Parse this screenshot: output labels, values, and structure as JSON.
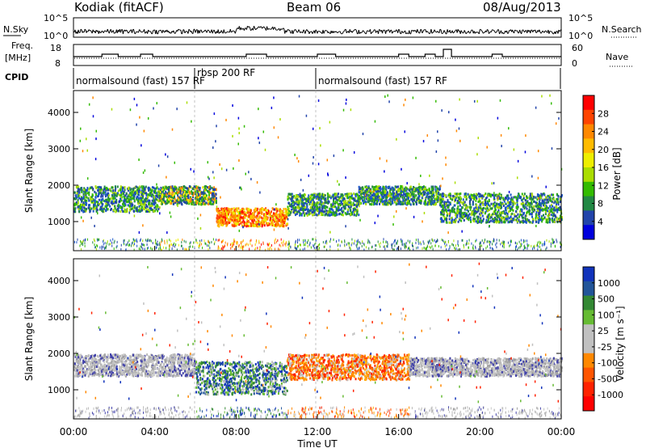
{
  "header": {
    "station": "Kodiak (fitACF)",
    "beam": "Beam 06",
    "date": "08/Aug/2013"
  },
  "nsky_panel": {
    "left_label": "N.Sky",
    "left_ticks": [
      "10^5",
      "10^0"
    ],
    "right_ticks": [
      "10^5",
      "10^0"
    ],
    "right_label": "N.Search"
  },
  "freq_panel": {
    "left_label_line1": "Freq.",
    "left_label_line2": "[MHz]",
    "left_ticks": [
      "18",
      "8"
    ],
    "right_ticks": [
      "60",
      "0"
    ],
    "right_label": "Nave"
  },
  "cpid_panel": {
    "label": "CPID",
    "segments": [
      {
        "text": "normalsound (fast) 157 RF"
      },
      {
        "text": "rbsp 200 RF"
      },
      {
        "text": "normalsound (fast) 157 RF"
      }
    ]
  },
  "colorbars": {
    "power": {
      "label": "Power [dB]",
      "ticks": [
        "28",
        "24",
        "20",
        "16",
        "12",
        "8",
        "4"
      ],
      "colors": [
        "#ff0000",
        "#ff4400",
        "#ff8800",
        "#ffbb00",
        "#eeee00",
        "#aadd00",
        "#33bb00",
        "#228844",
        "#2244aa",
        "#0000dd"
      ]
    },
    "velocity": {
      "label": "Velocity [m s⁻¹]",
      "ticks": [
        "1000",
        "500",
        "100",
        "25",
        "-25",
        "-100",
        "-500",
        "-1000"
      ],
      "colors": [
        "#1133bb",
        "#225599",
        "#338833",
        "#66bb33",
        "#c0c0c0",
        "#c0c0c0",
        "#ff8800",
        "#ff5500",
        "#ff2200",
        "#ff0000"
      ]
    }
  },
  "chart_data": [
    {
      "type": "heatmap",
      "title": "Power",
      "xlabel": "",
      "ylabel": "Slant Range [km]",
      "ylim": [
        200,
        4600
      ],
      "xlim": [
        0,
        24
      ],
      "yticks": [
        "4000",
        "3000",
        "2000",
        "1000"
      ],
      "scatter_bands": [
        {
          "start": 0.0,
          "end": 4.2,
          "range_lo": 1300,
          "range_hi": 2000,
          "level": "mid"
        },
        {
          "start": 4.2,
          "end": 7.0,
          "range_lo": 1500,
          "range_hi": 2000,
          "level": "high"
        },
        {
          "start": 7.0,
          "end": 10.5,
          "range_lo": 900,
          "range_hi": 1400,
          "level": "very_high"
        },
        {
          "start": 10.5,
          "end": 14.0,
          "range_lo": 1200,
          "range_hi": 1800,
          "level": "mid"
        },
        {
          "start": 14.0,
          "end": 18.0,
          "range_lo": 1500,
          "range_hi": 2000,
          "level": "mid"
        },
        {
          "start": 18.0,
          "end": 24.0,
          "range_lo": 1000,
          "range_hi": 1800,
          "level": "mid"
        }
      ]
    },
    {
      "type": "heatmap",
      "title": "Velocity",
      "xlabel": "Time UT",
      "ylabel": "Slant Range [km]",
      "ylim": [
        200,
        4600
      ],
      "xlim": [
        0,
        24
      ],
      "yticks": [
        "4000",
        "3000",
        "2000",
        "1000"
      ],
      "xticks": [
        "00:00",
        "04:00",
        "08:00",
        "12:00",
        "16:00",
        "20:00",
        "00:00"
      ],
      "scatter_bands": [
        {
          "start": 0.0,
          "end": 6.0,
          "range_lo": 1400,
          "range_hi": 2000,
          "level": "ground"
        },
        {
          "start": 6.0,
          "end": 10.5,
          "range_lo": 900,
          "range_hi": 1800,
          "level": "positive"
        },
        {
          "start": 10.5,
          "end": 16.5,
          "range_lo": 1300,
          "range_hi": 2000,
          "level": "negative"
        },
        {
          "start": 16.5,
          "end": 24.0,
          "range_lo": 1400,
          "range_hi": 1900,
          "level": "ground"
        }
      ]
    }
  ]
}
